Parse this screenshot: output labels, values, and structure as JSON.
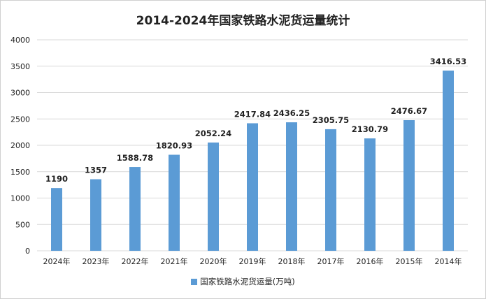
{
  "chart_data": {
    "type": "bar",
    "title": "2014-2024年国家铁路水泥货运量统计",
    "categories": [
      "2024年",
      "2023年",
      "2022年",
      "2021年",
      "2020年",
      "2019年",
      "2018年",
      "2017年",
      "2016年",
      "2015年",
      "2014年"
    ],
    "series": [
      {
        "name": "国家铁路水泥货运量(万吨)",
        "values": [
          1190,
          1357,
          1588.78,
          1820.93,
          2052.24,
          2417.84,
          2436.25,
          2305.75,
          2130.79,
          2476.67,
          3416.53
        ],
        "labels": [
          "1190",
          "1357",
          "1588.78",
          "1820.93",
          "2052.24",
          "2417.84",
          "2436.25",
          "2305.75",
          "2130.79",
          "2476.67",
          "3416.53"
        ]
      }
    ],
    "ylim": [
      0,
      4000
    ],
    "yticks": [
      "0",
      "500",
      "1000",
      "1500",
      "2000",
      "2500",
      "3000",
      "3500",
      "4000"
    ],
    "grid": true,
    "legend_position": "bottom",
    "bar_color": "#5b9bd5",
    "grid_color": "#d9d9d9"
  }
}
